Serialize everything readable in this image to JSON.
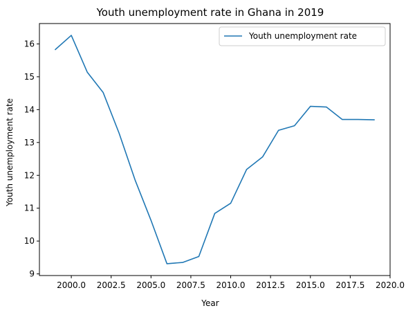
{
  "chart_data": {
    "type": "line",
    "title": "Youth unemployment rate in Ghana in 2019",
    "xlabel": "Year",
    "ylabel": "Youth unemployment rate",
    "xlim": [
      1998.0,
      2020.0
    ],
    "ylim": [
      8.95,
      16.62
    ],
    "xticks": [
      2000.0,
      2002.5,
      2005.0,
      2007.5,
      2010.0,
      2012.5,
      2015.0,
      2017.5,
      2020.0
    ],
    "xtick_labels": [
      "2000.0",
      "2002.5",
      "2005.0",
      "2007.5",
      "2010.0",
      "2012.5",
      "2015.0",
      "2017.5",
      "2020.0"
    ],
    "yticks": [
      9,
      10,
      11,
      12,
      13,
      14,
      15,
      16
    ],
    "ytick_labels": [
      "9",
      "10",
      "11",
      "12",
      "13",
      "14",
      "15",
      "16"
    ],
    "grid": false,
    "legend_position": "top-right",
    "series": [
      {
        "name": "Youth unemployment rate",
        "color": "#1f77b4",
        "x": [
          1999,
          2000,
          2001,
          2002,
          2003,
          2004,
          2005,
          2006,
          2007,
          2008,
          2009,
          2010,
          2011,
          2012,
          2013,
          2014,
          2015,
          2016,
          2017,
          2018,
          2019
        ],
        "values": [
          15.83,
          16.26,
          15.14,
          14.52,
          13.28,
          11.86,
          10.63,
          9.31,
          9.35,
          9.53,
          10.84,
          11.15,
          12.18,
          12.56,
          13.37,
          13.51,
          14.1,
          14.08,
          13.7,
          13.7,
          13.69
        ]
      }
    ]
  }
}
